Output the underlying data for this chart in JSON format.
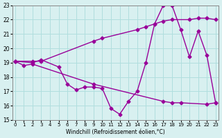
{
  "line1_x": [
    0,
    2,
    3,
    9,
    10,
    14,
    15,
    16,
    17,
    18,
    20,
    21,
    22,
    23
  ],
  "line1_y": [
    19.1,
    19.1,
    19.1,
    20.5,
    20.7,
    21.3,
    21.5,
    21.7,
    21.9,
    22.0,
    22.0,
    22.1,
    22.1,
    22.0
  ],
  "line2_x": [
    0,
    2,
    3,
    5,
    6,
    7,
    8,
    9,
    10,
    11,
    12,
    13,
    14,
    15,
    16,
    17,
    18,
    19,
    20,
    21,
    22,
    23
  ],
  "line2_y": [
    19.1,
    19.0,
    19.2,
    18.7,
    17.5,
    17.1,
    17.3,
    17.3,
    17.2,
    15.8,
    15.4,
    16.3,
    17.0,
    19.0,
    21.7,
    23.0,
    23.0,
    21.3,
    19.4,
    21.2,
    19.5,
    16.2
  ],
  "line3_x": [
    0,
    1,
    2,
    9,
    17,
    18,
    19,
    22,
    23
  ],
  "line3_y": [
    19.1,
    18.8,
    18.9,
    17.5,
    16.3,
    16.2,
    16.2,
    16.1,
    16.2
  ],
  "line_color": "#990099",
  "bg_color": "#d8f0f0",
  "grid_color": "#b0dede",
  "xlabel": "Windchill (Refroidissement éolien,°C)",
  "ylim": [
    15,
    23
  ],
  "xlim": [
    0,
    23
  ],
  "yticks": [
    15,
    16,
    17,
    18,
    19,
    20,
    21,
    22,
    23
  ],
  "xticks": [
    0,
    1,
    2,
    3,
    4,
    5,
    6,
    7,
    8,
    9,
    10,
    11,
    12,
    13,
    14,
    15,
    16,
    17,
    18,
    19,
    20,
    21,
    22,
    23
  ]
}
